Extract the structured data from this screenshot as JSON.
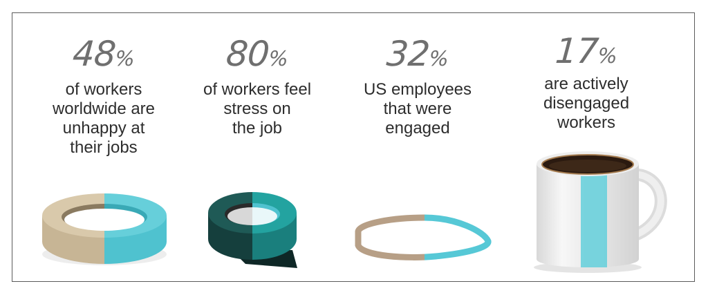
{
  "colors": {
    "accent": "#56c8d6",
    "tape_beige": "#cdbb9c",
    "tape_dark": "#1d4a48",
    "band_brown": "#b89f85",
    "mug_white": "#eeeeee",
    "coffee": "#2b1a10",
    "frame": "#5a5a5a"
  },
  "stats": [
    {
      "value": "48",
      "symbol": "%",
      "lines": [
        "of workers",
        "worldwide are",
        "unhappy at",
        "their jobs"
      ],
      "icon": "masking-tape-roll",
      "accent_fraction": 0.48
    },
    {
      "value": "80",
      "symbol": "%",
      "lines": [
        "of workers feel",
        "stress on",
        "the job"
      ],
      "icon": "electrical-tape-roll",
      "accent_fraction": 0.8
    },
    {
      "value": "32",
      "symbol": "%",
      "lines": [
        "US employees",
        "that were",
        "engaged"
      ],
      "icon": "rubber-band",
      "accent_fraction": 0.32
    },
    {
      "value": "17",
      "symbol": "%",
      "lines": [
        "are actively",
        "disengaged",
        "workers"
      ],
      "icon": "coffee-mug",
      "accent_fraction": 0.17
    }
  ]
}
